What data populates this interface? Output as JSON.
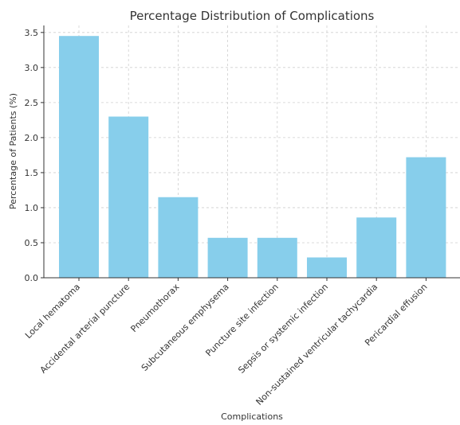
{
  "chart_data": {
    "type": "bar",
    "title": "Percentage Distribution of Complications",
    "xlabel": "Complications",
    "ylabel": "Percentage of Patients (%)",
    "categories": [
      "Local hematoma",
      "Accidental arterial puncture",
      "Pneumothorax",
      "Subcutaneous emphysema",
      "Puncture site infection",
      "Sepsis or systemic infection",
      "Non-sustained ventricular tachycardia",
      "Pericardial effusion"
    ],
    "values": [
      3.45,
      2.3,
      1.15,
      0.57,
      0.57,
      0.29,
      0.86,
      1.72
    ],
    "ylim": [
      0,
      3.6
    ],
    "yticks": [
      "0.0",
      "0.5",
      "1.0",
      "1.5",
      "2.0",
      "2.5",
      "3.0",
      "3.5"
    ],
    "grid": true,
    "bar_color": "#87CEEB"
  }
}
